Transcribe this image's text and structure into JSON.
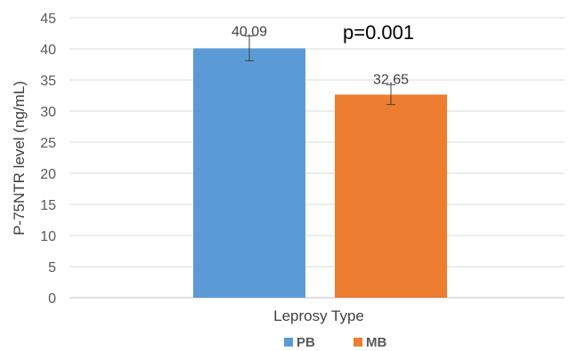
{
  "chart_data": {
    "type": "bar",
    "categories": [
      "Leprosy Type"
    ],
    "series": [
      {
        "name": "PB",
        "values": [
          40.09
        ],
        "error": [
          2.0
        ],
        "color": "#5B9BD5"
      },
      {
        "name": "MB",
        "values": [
          32.65
        ],
        "error": [
          1.6
        ],
        "color": "#ED7D31"
      }
    ],
    "data_labels": [
      "40.09",
      "32.65"
    ],
    "annotation": "p=0.001",
    "title": "",
    "xlabel": "Leprosy Type",
    "ylabel": "P-75NTR level (ng/mL)",
    "ylim": [
      0,
      45
    ],
    "yticks": [
      0,
      5,
      10,
      15,
      20,
      25,
      30,
      35,
      40,
      45
    ],
    "grid": true,
    "legend_position": "bottom"
  }
}
